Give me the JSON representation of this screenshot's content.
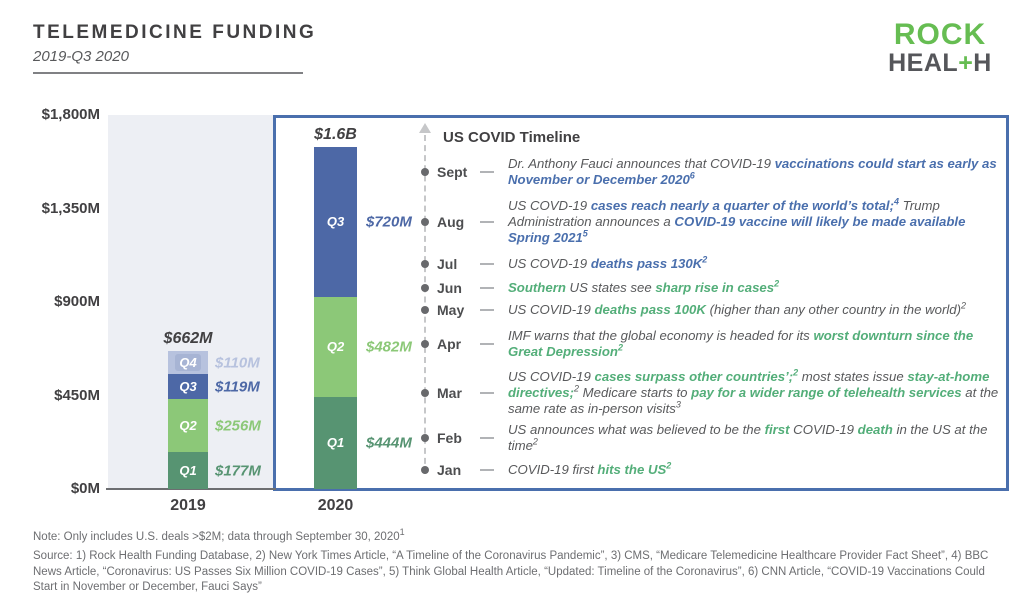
{
  "header": {
    "title": "TELEMEDICINE FUNDING",
    "subtitle": "2019-Q3 2020"
  },
  "logo": {
    "top": "ROCK",
    "bottom_pre": "HEAL",
    "bottom_plus": "+",
    "bottom_post": "H"
  },
  "colors": {
    "accent_blue": "#4a6fad",
    "accent_green": "#53ae79",
    "logo_green": "#66bd52",
    "plot_background": "#edeff4",
    "text_dark": "#414042",
    "text_gray": "#58595b"
  },
  "chart_data": {
    "type": "bar",
    "stacked": true,
    "title": "TELEMEDICINE FUNDING",
    "subtitle": "2019-Q3 2020",
    "unit": "$M",
    "categories": [
      "2019",
      "2020"
    ],
    "series": [
      {
        "name": "Q1",
        "color": "#579472",
        "values": [
          177,
          444
        ],
        "labels": [
          "$177M",
          "$444M"
        ]
      },
      {
        "name": "Q2",
        "color": "#8cc878",
        "values": [
          256,
          482
        ],
        "labels": [
          "$256M",
          "$482M"
        ]
      },
      {
        "name": "Q3",
        "color": "#4d68a6",
        "values": [
          119,
          720
        ],
        "labels": [
          "$119M",
          "$720M"
        ]
      },
      {
        "name": "Q4",
        "color": "#b7c2de",
        "chip_bg": "#a7b4d4",
        "values": [
          110,
          null
        ],
        "labels": [
          "$110M",
          null
        ]
      }
    ],
    "totals": [
      "$662M",
      "$1.6B"
    ],
    "y_ticks": [
      {
        "value": 0,
        "label": "$0M"
      },
      {
        "value": 450,
        "label": "$450M"
      },
      {
        "value": 900,
        "label": "$900M"
      },
      {
        "value": 1350,
        "label": "$1,350M"
      },
      {
        "value": 1800,
        "label": "$1,800M"
      }
    ],
    "ylim": [
      0,
      1800
    ],
    "grid": false,
    "legend": "none"
  },
  "timeline": {
    "title": "US COVID Timeline",
    "events": [
      {
        "month": "Sept",
        "segments": [
          {
            "t": "Dr. Anthony Fauci announces that COVID-19 "
          },
          {
            "t": "vaccinations could start as early as November or December 2020",
            "c": "b"
          },
          {
            "t": "6",
            "c": "b sup"
          }
        ]
      },
      {
        "month": "Aug",
        "segments": [
          {
            "t": "US COVD-19 "
          },
          {
            "t": "cases reach nearly a quarter of the world’s total;",
            "c": "b"
          },
          {
            "t": "4",
            "c": "b sup"
          },
          {
            "t": " Trump Administration announces a "
          },
          {
            "t": "COVID-19 vaccine will likely be made available Spring 2021",
            "c": "b"
          },
          {
            "t": "5",
            "c": "b sup"
          }
        ]
      },
      {
        "month": "Jul",
        "segments": [
          {
            "t": "US COVD-19 "
          },
          {
            "t": "deaths pass 130K",
            "c": "b"
          },
          {
            "t": "2",
            "c": "b sup"
          }
        ]
      },
      {
        "month": "Jun",
        "segments": [
          {
            "t": "Southern",
            "c": "g"
          },
          {
            "t": " US states see "
          },
          {
            "t": "sharp rise in cases",
            "c": "g"
          },
          {
            "t": "2",
            "c": "g sup"
          }
        ]
      },
      {
        "month": "May",
        "segments": [
          {
            "t": "US COVID-19 "
          },
          {
            "t": "deaths pass 100K",
            "c": "g"
          },
          {
            "t": " (higher than any other country in the world)"
          },
          {
            "t": "2",
            "c": "sup"
          }
        ]
      },
      {
        "month": "Apr",
        "segments": [
          {
            "t": "IMF warns that the global economy is headed for its "
          },
          {
            "t": "worst downturn since the Great Depression",
            "c": "g"
          },
          {
            "t": "2",
            "c": "g sup"
          }
        ]
      },
      {
        "month": "Mar",
        "segments": [
          {
            "t": "US COVID-19 "
          },
          {
            "t": "cases surpass other countries’;",
            "c": "g"
          },
          {
            "t": "2",
            "c": "g sup"
          },
          {
            "t": " most states issue "
          },
          {
            "t": "stay-at-home directives;",
            "c": "g"
          },
          {
            "t": "2",
            "c": "sup"
          },
          {
            "t": " Medicare starts to "
          },
          {
            "t": "pay for a wider range of telehealth services",
            "c": "g"
          },
          {
            "t": " at the same rate as in-person visits"
          },
          {
            "t": "3",
            "c": "sup"
          }
        ]
      },
      {
        "month": "Feb",
        "segments": [
          {
            "t": "US announces what was believed to be the "
          },
          {
            "t": "first",
            "c": "g"
          },
          {
            "t": " COVID-19 "
          },
          {
            "t": "death",
            "c": "g"
          },
          {
            "t": " in the US at the time"
          },
          {
            "t": "2",
            "c": "sup"
          }
        ]
      },
      {
        "month": "Jan",
        "segments": [
          {
            "t": "COVID-19 first "
          },
          {
            "t": "hits the US",
            "c": "g"
          },
          {
            "t": "2",
            "c": "g sup"
          }
        ]
      }
    ]
  },
  "footer": {
    "note": [
      {
        "t": "Note: Only includes U.S. deals >$2M; data through September 30, 2020"
      },
      {
        "t": "1",
        "c": "sup"
      }
    ],
    "source": "Source: 1) Rock Health Funding Database, 2) New York Times Article, “A Timeline of the Coronavirus Pandemic”, 3) CMS, “Medicare Telemedicine Healthcare Provider Fact Sheet”, 4) BBC News Article, “Coronavirus: US Passes Six Million COVID-19 Cases”, 5) Think Global Health Article, “Updated: Timeline of the Coronavirus”, 6) CNN Article, “COVID-19 Vaccinations Could Start in November or December, Fauci Says”"
  }
}
